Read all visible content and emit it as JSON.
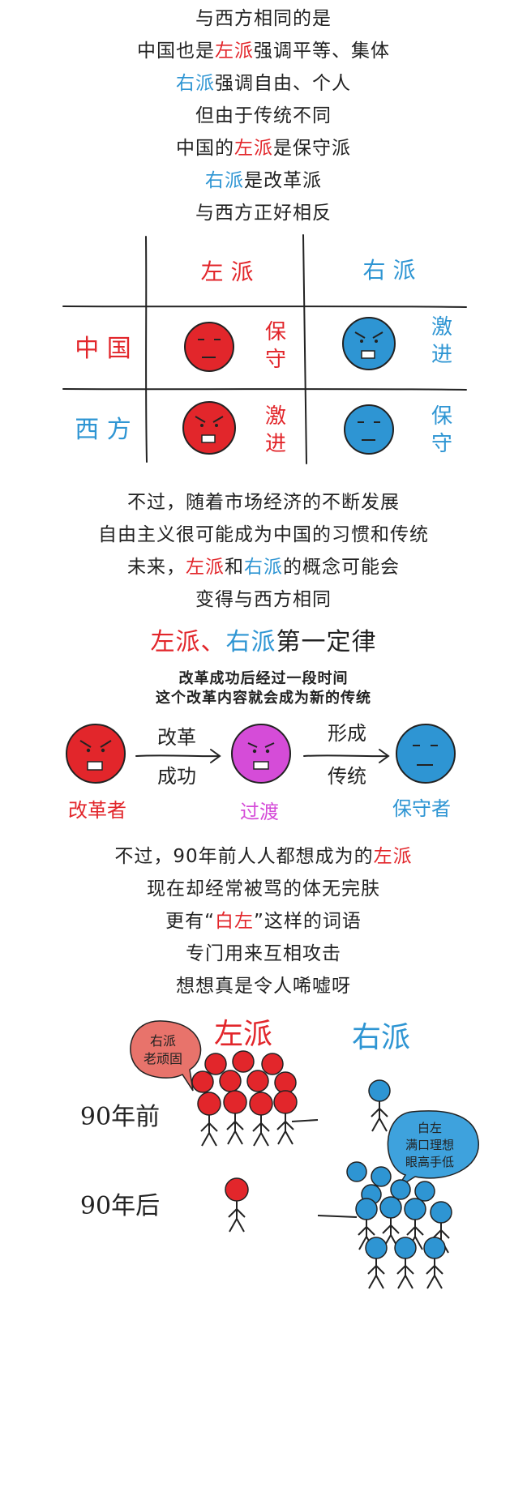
{
  "colors": {
    "red": "#e2262b",
    "blue": "#2e95d3",
    "magenta": "#d54cd8",
    "ink": "#222222"
  },
  "intro": {
    "l1": "与西方相同的是",
    "l2a": "中国也是",
    "l2b": "左派",
    "l2c": "强调平等、集体",
    "l3a": "右派",
    "l3b": "强调自由、个人",
    "l4": "但由于传统不同",
    "l5a": "中国的",
    "l5b": "左派",
    "l5c": "是保守派",
    "l6a": "右派",
    "l6b": "是改革派",
    "l7": "与西方正好相反"
  },
  "table": {
    "col_left": "左 派",
    "col_right": "右 派",
    "row_china": "中 国",
    "row_west": "西 方",
    "china_left_1": "保",
    "china_left_2": "守",
    "china_right_1": "激",
    "china_right_2": "进",
    "west_left_1": "激",
    "west_left_2": "进",
    "west_right_1": "保",
    "west_right_2": "守"
  },
  "middle": {
    "l1": "不过，随着市场经济的不断发展",
    "l2": "自由主义很可能成为中国的习惯和传统",
    "l3a": "未来，",
    "l3b": "左派",
    "l3c": "和",
    "l3d": "右派",
    "l3e": "的概念可能会",
    "l4": "变得与西方相同"
  },
  "law": {
    "title_a": "左派",
    "title_b": "、",
    "title_c": "右派",
    "title_d": "第一定律",
    "desc1": "改革成功后经过一段时间",
    "desc2": "这个改革内容就会成为新的传统",
    "arrow1_top": "改革",
    "arrow1_bottom": "成功",
    "arrow2_top": "形成",
    "arrow2_bottom": "传统",
    "label_reformer": "改革者",
    "label_transition": "过渡",
    "label_conservative": "保守者"
  },
  "ending": {
    "l1a": "不过，90年前人人都想成为的",
    "l1b": "左派",
    "l2": "现在却经常被骂的体无完肤",
    "l3a": "更有“",
    "l3b": "白左",
    "l3c": "”这样的词语",
    "l4": "专门用来互相攻击",
    "l5": "想想真是令人唏嘘呀"
  },
  "crowd": {
    "col_left": "左派",
    "col_right": "右派",
    "bubble_left_1": "右派",
    "bubble_left_2": "老顽固",
    "bubble_right_1": "白左",
    "bubble_right_2": "满口理想",
    "bubble_right_3": "眼高手低",
    "row_before": "90年前",
    "row_after": "90年后"
  }
}
